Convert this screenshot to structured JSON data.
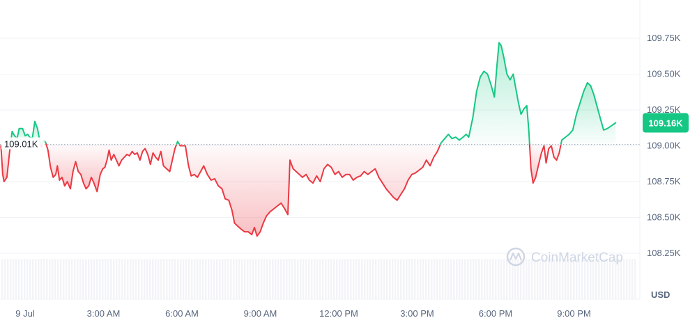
{
  "chart_data": {
    "type": "line",
    "currency": "USD",
    "reference_label": "109.01K",
    "reference_value": 109.01,
    "current_label": "109.16K",
    "current_value": 109.16,
    "y_ticks": [
      {
        "value": 109.75,
        "label": "109.75K"
      },
      {
        "value": 109.5,
        "label": "109.50K"
      },
      {
        "value": 109.25,
        "label": "109.25K"
      },
      {
        "value": 109.0,
        "label": "109.00K"
      },
      {
        "value": 108.75,
        "label": "108.75K"
      },
      {
        "value": 108.5,
        "label": "108.50K"
      },
      {
        "value": 108.25,
        "label": "108.25K"
      }
    ],
    "x_ticks": [
      {
        "hour": 0,
        "label": "9 Jul"
      },
      {
        "hour": 3,
        "label": "3:00 AM"
      },
      {
        "hour": 6,
        "label": "6:00 AM"
      },
      {
        "hour": 9,
        "label": "9:00 AM"
      },
      {
        "hour": 12,
        "label": "12:00 PM"
      },
      {
        "hour": 15,
        "label": "3:00 PM"
      },
      {
        "hour": 18,
        "label": "6:00 PM"
      },
      {
        "hour": 21,
        "label": "9:00 PM"
      }
    ],
    "y_range": [
      108.0,
      110.0
    ],
    "x_range": [
      -0.5,
      24.25
    ],
    "colors": {
      "up": "#16c784",
      "down": "#ea3943",
      "up_fill": "#16c784",
      "down_fill": "#ea3943"
    },
    "series": [
      {
        "points": [
          [
            -0.5,
            109.0
          ],
          [
            -0.43,
            108.8
          ],
          [
            -0.38,
            108.75
          ],
          [
            -0.27,
            108.78
          ],
          [
            -0.17,
            108.95
          ],
          [
            -0.07,
            109.1
          ],
          [
            0.02,
            109.07
          ],
          [
            0.12,
            109.05
          ],
          [
            0.2,
            109.12
          ],
          [
            0.33,
            109.12
          ],
          [
            0.43,
            109.07
          ],
          [
            0.53,
            109.08
          ],
          [
            0.6,
            109.06
          ],
          [
            0.7,
            109.05
          ],
          [
            0.8,
            109.17
          ],
          [
            0.9,
            109.12
          ],
          [
            0.98,
            109.04
          ],
          [
            1.06,
            108.99
          ],
          [
            1.14,
            109.04
          ],
          [
            1.22,
            109.02
          ],
          [
            1.3,
            108.97
          ],
          [
            1.4,
            108.85
          ],
          [
            1.5,
            108.78
          ],
          [
            1.6,
            108.8
          ],
          [
            1.66,
            108.86
          ],
          [
            1.74,
            108.76
          ],
          [
            1.84,
            108.78
          ],
          [
            1.94,
            108.72
          ],
          [
            2.04,
            108.75
          ],
          [
            2.16,
            108.7
          ],
          [
            2.26,
            108.82
          ],
          [
            2.36,
            108.89
          ],
          [
            2.46,
            108.82
          ],
          [
            2.56,
            108.8
          ],
          [
            2.66,
            108.74
          ],
          [
            2.76,
            108.7
          ],
          [
            2.86,
            108.72
          ],
          [
            2.96,
            108.78
          ],
          [
            3.06,
            108.74
          ],
          [
            3.18,
            108.68
          ],
          [
            3.3,
            108.8
          ],
          [
            3.4,
            108.84
          ],
          [
            3.48,
            108.85
          ],
          [
            3.56,
            108.9
          ],
          [
            3.64,
            108.97
          ],
          [
            3.72,
            108.9
          ],
          [
            3.82,
            108.94
          ],
          [
            3.92,
            108.9
          ],
          [
            4.02,
            108.86
          ],
          [
            4.12,
            108.9
          ],
          [
            4.22,
            108.92
          ],
          [
            4.32,
            108.94
          ],
          [
            4.42,
            108.93
          ],
          [
            4.52,
            108.96
          ],
          [
            4.62,
            108.94
          ],
          [
            4.72,
            108.95
          ],
          [
            4.82,
            108.9
          ],
          [
            4.92,
            108.96
          ],
          [
            5.02,
            108.98
          ],
          [
            5.12,
            108.94
          ],
          [
            5.22,
            108.87
          ],
          [
            5.32,
            108.95
          ],
          [
            5.42,
            108.92
          ],
          [
            5.52,
            108.9
          ],
          [
            5.62,
            108.96
          ],
          [
            5.72,
            108.86
          ],
          [
            5.84,
            108.84
          ],
          [
            5.96,
            108.82
          ],
          [
            6.06,
            108.9
          ],
          [
            6.16,
            108.98
          ],
          [
            6.26,
            109.03
          ],
          [
            6.36,
            109.0
          ],
          [
            6.44,
            109.0
          ],
          [
            6.56,
            109.0
          ],
          [
            6.68,
            108.86
          ],
          [
            6.78,
            108.79
          ],
          [
            6.9,
            108.8
          ],
          [
            7.02,
            108.78
          ],
          [
            7.14,
            108.82
          ],
          [
            7.26,
            108.86
          ],
          [
            7.4,
            108.8
          ],
          [
            7.54,
            108.76
          ],
          [
            7.68,
            108.77
          ],
          [
            7.82,
            108.72
          ],
          [
            7.96,
            108.7
          ],
          [
            8.08,
            108.63
          ],
          [
            8.22,
            108.62
          ],
          [
            8.34,
            108.55
          ],
          [
            8.44,
            108.46
          ],
          [
            8.56,
            108.44
          ],
          [
            8.68,
            108.42
          ],
          [
            8.82,
            108.4
          ],
          [
            8.96,
            108.4
          ],
          [
            9.1,
            108.38
          ],
          [
            9.2,
            108.43
          ],
          [
            9.3,
            108.37
          ],
          [
            9.42,
            108.4
          ],
          [
            9.54,
            108.46
          ],
          [
            9.66,
            108.51
          ],
          [
            9.8,
            108.54
          ],
          [
            9.94,
            108.56
          ],
          [
            10.08,
            108.58
          ],
          [
            10.22,
            108.6
          ],
          [
            10.36,
            108.56
          ],
          [
            10.48,
            108.52
          ],
          [
            10.56,
            108.9
          ],
          [
            10.68,
            108.84
          ],
          [
            10.8,
            108.82
          ],
          [
            10.92,
            108.8
          ],
          [
            11.04,
            108.78
          ],
          [
            11.18,
            108.8
          ],
          [
            11.3,
            108.76
          ],
          [
            11.44,
            108.74
          ],
          [
            11.58,
            108.79
          ],
          [
            11.72,
            108.75
          ],
          [
            11.86,
            108.84
          ],
          [
            12.0,
            108.87
          ],
          [
            12.14,
            108.85
          ],
          [
            12.28,
            108.8
          ],
          [
            12.42,
            108.82
          ],
          [
            12.56,
            108.78
          ],
          [
            12.7,
            108.8
          ],
          [
            12.84,
            108.8
          ],
          [
            12.98,
            108.76
          ],
          [
            13.12,
            108.78
          ],
          [
            13.26,
            108.79
          ],
          [
            13.4,
            108.82
          ],
          [
            13.54,
            108.8
          ],
          [
            13.68,
            108.82
          ],
          [
            13.82,
            108.84
          ],
          [
            13.96,
            108.78
          ],
          [
            14.1,
            108.74
          ],
          [
            14.24,
            108.7
          ],
          [
            14.38,
            108.67
          ],
          [
            14.52,
            108.64
          ],
          [
            14.66,
            108.62
          ],
          [
            14.8,
            108.66
          ],
          [
            14.94,
            108.7
          ],
          [
            15.08,
            108.76
          ],
          [
            15.22,
            108.8
          ],
          [
            15.36,
            108.81
          ],
          [
            15.5,
            108.83
          ],
          [
            15.64,
            108.85
          ],
          [
            15.78,
            108.9
          ],
          [
            15.92,
            108.86
          ],
          [
            16.06,
            108.92
          ],
          [
            16.2,
            108.96
          ],
          [
            16.34,
            109.02
          ],
          [
            16.48,
            109.05
          ],
          [
            16.62,
            109.08
          ],
          [
            16.76,
            109.05
          ],
          [
            16.9,
            109.06
          ],
          [
            17.04,
            109.04
          ],
          [
            17.18,
            109.06
          ],
          [
            17.3,
            109.08
          ],
          [
            17.4,
            109.06
          ],
          [
            17.56,
            109.2
          ],
          [
            17.7,
            109.38
          ],
          [
            17.84,
            109.48
          ],
          [
            17.98,
            109.52
          ],
          [
            18.12,
            109.5
          ],
          [
            18.26,
            109.42
          ],
          [
            18.38,
            109.34
          ],
          [
            18.48,
            109.56
          ],
          [
            18.56,
            109.72
          ],
          [
            18.64,
            109.7
          ],
          [
            18.74,
            109.62
          ],
          [
            18.86,
            109.5
          ],
          [
            18.98,
            109.46
          ],
          [
            19.1,
            109.5
          ],
          [
            19.2,
            109.4
          ],
          [
            19.3,
            109.3
          ],
          [
            19.4,
            109.22
          ],
          [
            19.52,
            109.26
          ],
          [
            19.62,
            109.28
          ],
          [
            19.7,
            109.1
          ],
          [
            19.78,
            108.84
          ],
          [
            19.86,
            108.74
          ],
          [
            19.96,
            108.78
          ],
          [
            20.06,
            108.86
          ],
          [
            20.18,
            108.95
          ],
          [
            20.28,
            109.0
          ],
          [
            20.36,
            108.88
          ],
          [
            20.46,
            108.98
          ],
          [
            20.56,
            109.0
          ],
          [
            20.66,
            108.92
          ],
          [
            20.76,
            108.9
          ],
          [
            20.86,
            108.95
          ],
          [
            20.96,
            109.04
          ],
          [
            21.1,
            109.06
          ],
          [
            21.24,
            109.08
          ],
          [
            21.38,
            109.11
          ],
          [
            21.52,
            109.22
          ],
          [
            21.66,
            109.3
          ],
          [
            21.8,
            109.38
          ],
          [
            21.94,
            109.44
          ],
          [
            22.06,
            109.42
          ],
          [
            22.18,
            109.36
          ],
          [
            22.3,
            109.28
          ],
          [
            22.42,
            109.2
          ],
          [
            22.56,
            109.11
          ],
          [
            22.7,
            109.12
          ],
          [
            22.86,
            109.14
          ],
          [
            23.02,
            109.16
          ]
        ]
      }
    ]
  },
  "watermark": {
    "text": "CoinMarketCap",
    "icon": "coinmarketcap-logo-icon"
  }
}
